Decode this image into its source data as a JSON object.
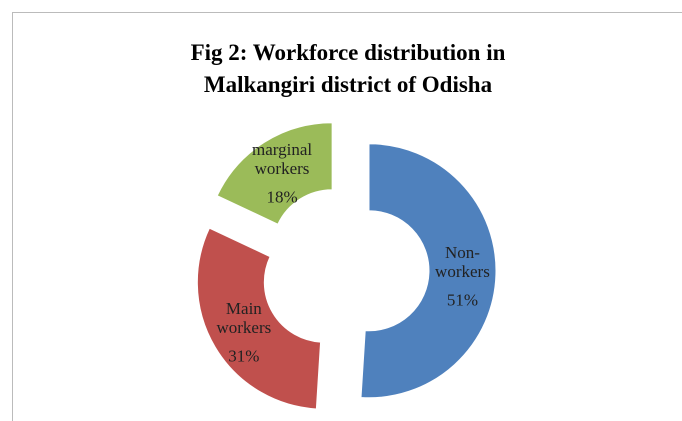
{
  "chart_data": {
    "type": "doughnut",
    "title": [
      "Fig 2: Workforce distribution in",
      "Malkangiri district of Odisha"
    ],
    "categories": [
      "Non-workers",
      "Main workers",
      "marginal workers"
    ],
    "values": [
      51,
      31,
      18
    ],
    "value_labels": [
      "51%",
      "31%",
      "18%"
    ],
    "colors": [
      "#4f81bd",
      "#c0504d",
      "#9bbb59"
    ],
    "exploded": true
  }
}
